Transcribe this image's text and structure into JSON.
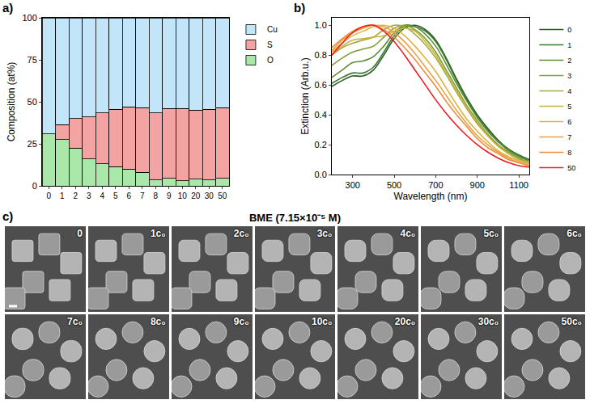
{
  "chart_data": [
    {
      "type": "bar",
      "panel_label": "a)",
      "y_label": "Composition (at%)",
      "categories": [
        "0",
        "1",
        "2",
        "3",
        "4",
        "5",
        "6",
        "7",
        "8",
        "9",
        "10",
        "20",
        "30",
        "50"
      ],
      "stacked": true,
      "series": [
        {
          "name": "O",
          "color": "#a9e8a9",
          "values": [
            31,
            27.5,
            22.5,
            16,
            13,
            11.5,
            10,
            8,
            3.5,
            4.5,
            3,
            4,
            3.5,
            4.5
          ]
        },
        {
          "name": "S",
          "color": "#f4a3a3",
          "values": [
            0,
            9,
            17.5,
            25,
            30.5,
            34,
            37,
            38.5,
            40,
            41.5,
            43,
            41,
            42,
            42
          ]
        },
        {
          "name": "Cu",
          "color": "#c2e5f9",
          "values": [
            69,
            63.5,
            60,
            59,
            56.5,
            54.5,
            53,
            53.5,
            56.5,
            54,
            54,
            55,
            54.5,
            53.5
          ]
        }
      ],
      "ylim": [
        0,
        100
      ],
      "yticks": [
        0,
        25,
        50,
        75,
        100
      ],
      "legend": "right",
      "grid": false
    },
    {
      "type": "line",
      "panel_label": "b)",
      "x_label": "Wavelength (nm)",
      "y_label": "Extinction (Arb.u.)",
      "x": [
        200,
        250,
        300,
        350,
        400,
        450,
        500,
        550,
        600,
        650,
        700,
        750,
        800,
        850,
        900,
        950,
        1000,
        1050,
        1100,
        1150
      ],
      "series": [
        {
          "name": "0",
          "color": "#2d5a27",
          "values": [
            0.59,
            0.63,
            0.66,
            0.66,
            0.7,
            0.8,
            0.91,
            0.98,
            1.0,
            0.97,
            0.9,
            0.78,
            0.64,
            0.51,
            0.4,
            0.31,
            0.23,
            0.17,
            0.13,
            0.1
          ]
        },
        {
          "name": "1",
          "color": "#3b7a33",
          "values": [
            0.61,
            0.65,
            0.68,
            0.68,
            0.72,
            0.82,
            0.93,
            0.99,
            0.99,
            0.96,
            0.89,
            0.77,
            0.63,
            0.5,
            0.39,
            0.3,
            0.22,
            0.17,
            0.13,
            0.1
          ]
        },
        {
          "name": "2",
          "color": "#5c8f35",
          "values": [
            0.65,
            0.7,
            0.75,
            0.76,
            0.79,
            0.86,
            0.95,
            1.0,
            0.99,
            0.94,
            0.86,
            0.74,
            0.61,
            0.49,
            0.38,
            0.29,
            0.22,
            0.16,
            0.12,
            0.09
          ]
        },
        {
          "name": "3",
          "color": "#7f9e38",
          "values": [
            0.73,
            0.78,
            0.82,
            0.84,
            0.86,
            0.92,
            0.98,
            1.0,
            0.97,
            0.91,
            0.82,
            0.7,
            0.58,
            0.46,
            0.36,
            0.27,
            0.2,
            0.15,
            0.11,
            0.08
          ]
        },
        {
          "name": "4",
          "color": "#a4aa3a",
          "values": [
            0.8,
            0.85,
            0.88,
            0.9,
            0.92,
            0.97,
            1.0,
            0.99,
            0.94,
            0.87,
            0.78,
            0.67,
            0.55,
            0.44,
            0.34,
            0.26,
            0.19,
            0.14,
            0.1,
            0.08
          ]
        },
        {
          "name": "5",
          "color": "#c9b33c",
          "values": [
            0.8,
            0.86,
            0.9,
            0.91,
            0.92,
            0.93,
            0.96,
            0.98,
            0.96,
            0.89,
            0.8,
            0.68,
            0.56,
            0.45,
            0.35,
            0.26,
            0.19,
            0.14,
            0.1,
            0.08
          ]
        },
        {
          "name": "6",
          "color": "#e2b23f",
          "values": [
            0.82,
            0.88,
            0.93,
            0.96,
            0.99,
            1.0,
            0.98,
            0.93,
            0.86,
            0.78,
            0.69,
            0.58,
            0.47,
            0.37,
            0.29,
            0.22,
            0.16,
            0.12,
            0.09,
            0.07
          ]
        },
        {
          "name": "7",
          "color": "#eaa23f",
          "values": [
            0.83,
            0.9,
            0.95,
            0.98,
            1.0,
            0.99,
            0.95,
            0.89,
            0.81,
            0.72,
            0.63,
            0.53,
            0.43,
            0.34,
            0.26,
            0.2,
            0.15,
            0.11,
            0.08,
            0.06
          ]
        },
        {
          "name": "8",
          "color": "#f08d3e",
          "values": [
            0.85,
            0.91,
            0.96,
            0.99,
            1.0,
            0.97,
            0.92,
            0.85,
            0.77,
            0.68,
            0.59,
            0.49,
            0.4,
            0.32,
            0.24,
            0.18,
            0.14,
            0.1,
            0.08,
            0.06
          ]
        },
        {
          "name": "50",
          "color": "#ee1c24",
          "values": [
            0.8,
            0.88,
            0.95,
            0.99,
            1.0,
            0.96,
            0.89,
            0.8,
            0.7,
            0.6,
            0.5,
            0.41,
            0.33,
            0.26,
            0.2,
            0.15,
            0.11,
            0.08,
            0.06,
            0.05
          ]
        }
      ],
      "xlim": [
        200,
        1150
      ],
      "xticks": [
        300,
        500,
        700,
        900,
        1100
      ],
      "ylim": [
        0,
        1.05
      ],
      "yticks": [
        {
          "value": 0,
          "label": "0.0"
        },
        {
          "value": 0.2,
          "label": "0.2"
        },
        {
          "value": 0.4,
          "label": "0.4"
        },
        {
          "value": 0.6,
          "label": "0.6"
        },
        {
          "value": 0.8,
          "label": "0.8"
        },
        {
          "value": 1,
          "label": "1.0"
        }
      ],
      "legend": "right",
      "grid": false
    }
  ],
  "image_grid": {
    "panel_label": "c)",
    "title": "BME (7.15×10⁻⁵ M)",
    "images": [
      "0",
      "1c₀",
      "2c₀",
      "3c₀",
      "4c₀",
      "5c₀",
      "6c₀",
      "7c₀",
      "8c₀",
      "9c₀",
      "10c₀",
      "20c₀",
      "30c₀",
      "50c₀"
    ]
  }
}
